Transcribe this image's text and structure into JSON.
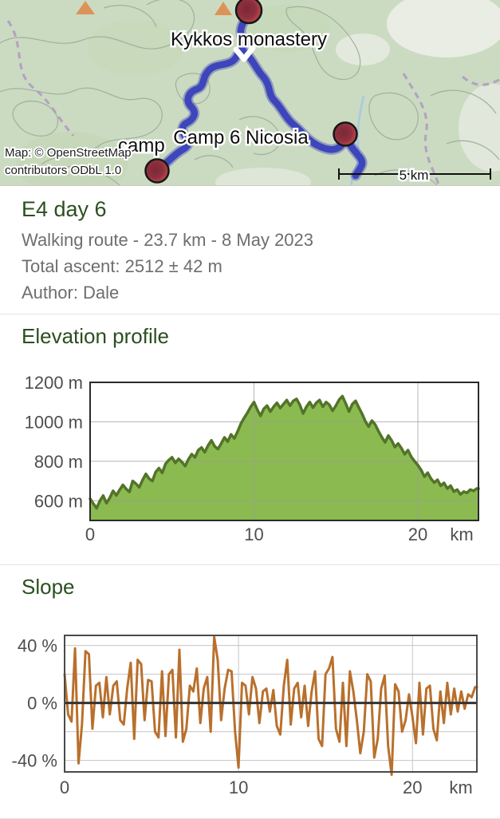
{
  "map": {
    "labels": {
      "monastery": "Kykkos monastery",
      "camp6": "Camp 6 Nicosia",
      "camp_partial": "camp"
    },
    "attribution_line1": "Map: © OpenStreetMap",
    "attribution_line2": "contributors ODbL 1.0",
    "scale_label": "5 km",
    "colors": {
      "land": "#cbdbc2",
      "route": "#3a41ba",
      "marker_outer": "#b24444",
      "marker_inner": "#7c2836",
      "peak_triangle": "#dd9357",
      "contour": "#9fae9c",
      "trail_dashed": "#b39cc0",
      "river": "#a9c7e2"
    }
  },
  "header": {
    "title": "E4 day 6",
    "info_lines": [
      "Walking route - 23.7 km - 8 May 2023",
      "Total ascent: 2512 ± 42 m",
      "Author: Dale"
    ]
  },
  "chart_data": [
    {
      "type": "area",
      "title": "Elevation profile",
      "xlabel": "km",
      "ylabel": "m",
      "x_unit": "km",
      "y_unit": "m",
      "xlim": [
        0,
        23.7
      ],
      "ylim": [
        500,
        1200
      ],
      "x_ticks": [
        0,
        10,
        20
      ],
      "y_ticks": [
        600,
        800,
        1000,
        1200
      ],
      "grid": true,
      "x_start": 0,
      "x_step": 0.2,
      "fill_color": "#8bba51",
      "line_color": "#527428",
      "values": [
        610,
        585,
        562,
        600,
        626,
        588,
        615,
        650,
        627,
        655,
        680,
        660,
        645,
        700,
        686,
        668,
        705,
        736,
        712,
        700,
        745,
        765,
        741,
        786,
        806,
        820,
        792,
        812,
        796,
        776,
        810,
        836,
        820,
        856,
        870,
        846,
        880,
        906,
        876,
        862,
        890,
        921,
        900,
        936,
        916,
        950,
        990,
        1020,
        1046,
        1076,
        1100,
        1062,
        1030,
        1066,
        1082,
        1052,
        1076,
        1096,
        1070,
        1090,
        1110,
        1082,
        1106,
        1116,
        1086,
        1042,
        1076,
        1100,
        1072,
        1096,
        1110,
        1076,
        1100,
        1086,
        1056,
        1082,
        1112,
        1130,
        1092,
        1052,
        1090,
        1106,
        1072,
        1040,
        1002,
        976,
        1006,
        986,
        952,
        922,
        896,
        930,
        906,
        872,
        890,
        866,
        836,
        856,
        822,
        800,
        780,
        756,
        722,
        742,
        712,
        692,
        706,
        676,
        690,
        662,
        676,
        646,
        656,
        632,
        646,
        640,
        656,
        650,
        662
      ]
    },
    {
      "type": "line",
      "title": "Slope",
      "xlabel": "km",
      "ylabel": "%",
      "x_unit": "km",
      "y_unit": "%",
      "xlim": [
        0,
        23.7
      ],
      "ylim": [
        -48,
        47
      ],
      "x_ticks": [
        0,
        10,
        20
      ],
      "y_ticks_labeled": [
        40,
        0,
        -40
      ],
      "y_grid": [
        40,
        20,
        -20,
        -40
      ],
      "zero_line": true,
      "grid": true,
      "x_start": 0,
      "x_step": 0.2,
      "line_color": "#b9702c",
      "values": [
        20,
        -8,
        -13,
        38,
        -42,
        -15,
        36,
        34,
        -18,
        12,
        14,
        -10,
        18,
        -8,
        12,
        15,
        -12,
        -15,
        10,
        28,
        -25,
        30,
        27,
        -12,
        16,
        15,
        -20,
        -24,
        22,
        -23,
        20,
        23,
        -24,
        37,
        -27,
        -18,
        12,
        8,
        24,
        -14,
        10,
        18,
        -20,
        46,
        30,
        -12,
        10,
        23,
        22,
        -20,
        -45,
        14,
        12,
        -8,
        18,
        10,
        -14,
        8,
        10,
        -6,
        9,
        -16,
        -22,
        12,
        30,
        -15,
        10,
        14,
        -10,
        12,
        -16,
        8,
        22,
        -25,
        -30,
        20,
        24,
        32,
        -18,
        -27,
        14,
        -30,
        22,
        8,
        -12,
        -35,
        -20,
        20,
        15,
        -38,
        -25,
        10,
        19,
        -30,
        -50,
        13,
        8,
        -20,
        -12,
        6,
        -10,
        -28,
        14,
        -22,
        10,
        12,
        -18,
        -26,
        8,
        -14,
        14,
        -8,
        10,
        -6,
        8,
        -4,
        6,
        4,
        11
      ]
    }
  ]
}
